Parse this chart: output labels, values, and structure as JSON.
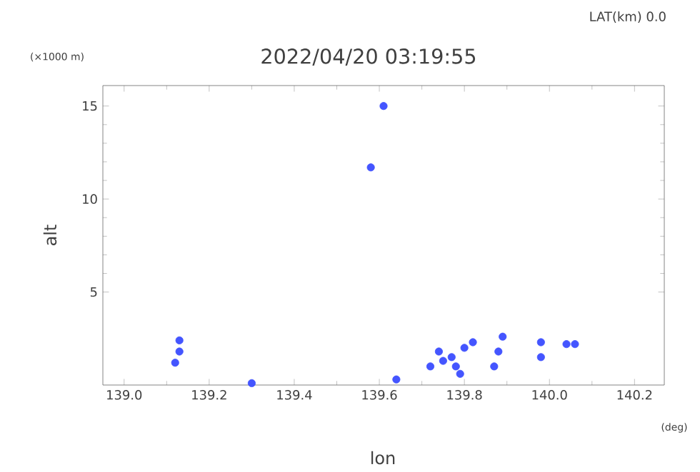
{
  "chart_data": {
    "type": "scatter",
    "title": "2022/04/20 03:19:55",
    "xlabel": "lon",
    "ylabel": "alt",
    "annotations": [
      "LAT(km) 0.0",
      "(×1000 m)",
      "(deg)"
    ],
    "xlim": [
      138.95,
      140.27
    ],
    "ylim": [
      0,
      16.1
    ],
    "xticks": [
      {
        "value": 139.0,
        "label": "139.0"
      },
      {
        "value": 139.2,
        "label": "139.2"
      },
      {
        "value": 139.4,
        "label": "139.4"
      },
      {
        "value": 139.6,
        "label": "139.6"
      },
      {
        "value": 139.8,
        "label": "139.8"
      },
      {
        "value": 140.0,
        "label": "140.0"
      },
      {
        "value": 140.2,
        "label": "140.2"
      }
    ],
    "yticks": [
      5,
      10,
      15
    ],
    "grid": false,
    "series": [
      {
        "color": "#4455ff",
        "x": [
          139.13,
          139.13,
          139.12,
          139.3,
          139.64,
          139.72,
          139.74,
          139.75,
          139.78,
          139.8,
          139.82,
          139.79,
          139.77,
          139.87,
          139.88,
          139.89,
          139.98,
          139.98,
          140.04,
          140.06,
          139.61,
          139.58
        ],
        "values": [
          2.4,
          1.8,
          1.2,
          0.1,
          0.3,
          1.0,
          1.8,
          1.3,
          1.0,
          2.0,
          2.3,
          0.6,
          1.5,
          1.0,
          1.8,
          2.6,
          1.5,
          2.3,
          2.2,
          2.2,
          15.0,
          11.7
        ]
      }
    ]
  }
}
